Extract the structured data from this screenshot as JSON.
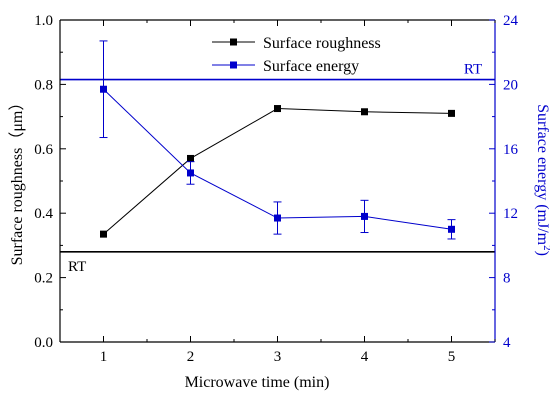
{
  "chart_data": {
    "type": "line",
    "x": [
      1,
      2,
      3,
      4,
      5
    ],
    "xlabel": "Microwave time (min)",
    "xlim": [
      0.5,
      5.5
    ],
    "xticks": [
      "1",
      "2",
      "3",
      "4",
      "5"
    ],
    "ylabel": "Surface roughness（μm）",
    "ylim": [
      0.0,
      1.0
    ],
    "yticks": [
      "0.0",
      "0.2",
      "0.4",
      "0.6",
      "0.8",
      "1.0"
    ],
    "y2label_main": "Surface energy (mJ/m",
    "y2label_sup": "2",
    "y2label_end": ")",
    "y2lim": [
      4,
      24
    ],
    "y2ticks": [
      "4",
      "8",
      "12",
      "16",
      "20",
      "24"
    ],
    "legend_position": "top-center",
    "series": [
      {
        "name": "Surface roughness",
        "axis": "left",
        "color": "#000000",
        "marker": "square",
        "values": [
          0.335,
          0.57,
          0.725,
          0.715,
          0.71
        ]
      },
      {
        "name": "Surface energy",
        "axis": "right",
        "color": "#0000cc",
        "marker": "square",
        "values": [
          19.7,
          14.5,
          11.7,
          11.8,
          11.0
        ],
        "errors": [
          3.0,
          0.7,
          1.0,
          1.0,
          0.6
        ]
      }
    ],
    "reference_lines": [
      {
        "label": "RT",
        "axis": "left",
        "value": 0.28,
        "color": "#000000"
      },
      {
        "label": "RT",
        "axis": "right",
        "value": 20.3,
        "color": "#0000cc"
      }
    ]
  }
}
